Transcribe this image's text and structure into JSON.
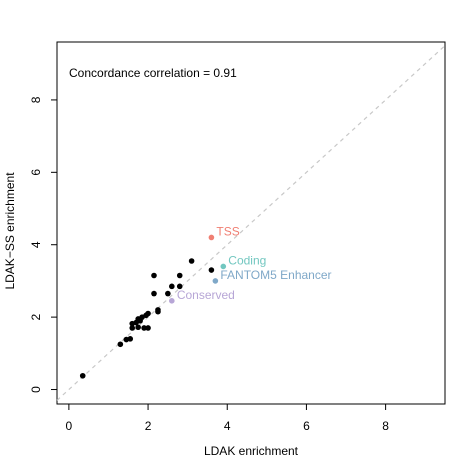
{
  "chart_data": {
    "type": "scatter",
    "title": "",
    "xlabel": "LDAK enrichment",
    "ylabel": "LDAK−SS enrichment",
    "xlim": [
      -0.3,
      9.5
    ],
    "ylim": [
      -0.4,
      9.6
    ],
    "xticks": [
      "0",
      "2",
      "4",
      "6",
      "8"
    ],
    "yticks": [
      "0",
      "2",
      "4",
      "6",
      "8"
    ],
    "grid": false,
    "annotation": "Concordance correlation = 0.91",
    "reference_line": {
      "slope": 1,
      "intercept": 0,
      "style": "dashed",
      "color": "#c8c8c8"
    },
    "points": [
      {
        "x": 0.35,
        "y": 0.38
      },
      {
        "x": 1.3,
        "y": 1.25
      },
      {
        "x": 1.45,
        "y": 1.38
      },
      {
        "x": 1.55,
        "y": 1.4
      },
      {
        "x": 1.6,
        "y": 1.7
      },
      {
        "x": 1.6,
        "y": 1.82
      },
      {
        "x": 1.7,
        "y": 1.85
      },
      {
        "x": 1.75,
        "y": 1.72
      },
      {
        "x": 1.75,
        "y": 1.95
      },
      {
        "x": 1.8,
        "y": 1.9
      },
      {
        "x": 1.85,
        "y": 2.0
      },
      {
        "x": 1.9,
        "y": 1.7
      },
      {
        "x": 1.95,
        "y": 2.05
      },
      {
        "x": 2.0,
        "y": 1.7
      },
      {
        "x": 2.0,
        "y": 2.1
      },
      {
        "x": 2.15,
        "y": 3.15
      },
      {
        "x": 2.15,
        "y": 2.65
      },
      {
        "x": 2.25,
        "y": 2.2
      },
      {
        "x": 2.25,
        "y": 2.15
      },
      {
        "x": 2.5,
        "y": 2.65
      },
      {
        "x": 2.6,
        "y": 2.85
      },
      {
        "x": 2.8,
        "y": 2.85
      },
      {
        "x": 2.8,
        "y": 3.15
      },
      {
        "x": 3.1,
        "y": 3.55
      },
      {
        "x": 3.6,
        "y": 3.3
      }
    ],
    "highlighted": [
      {
        "x": 3.6,
        "y": 4.2,
        "label": "TSS",
        "color": "#f07f73"
      },
      {
        "x": 3.9,
        "y": 3.4,
        "label": "Coding",
        "color": "#72c7c0"
      },
      {
        "x": 3.7,
        "y": 3.0,
        "label": "FANTOM5 Enhancer",
        "color": "#7fa8c8"
      },
      {
        "x": 2.6,
        "y": 2.45,
        "label": "Conserved",
        "color": "#b7a6d6"
      }
    ]
  }
}
